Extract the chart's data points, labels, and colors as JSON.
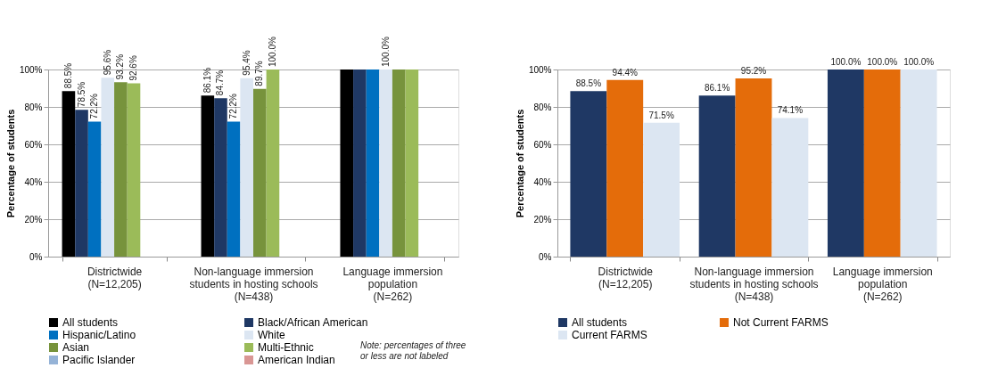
{
  "chart_data": [
    {
      "type": "bar",
      "ylabel": "Percentage of students",
      "categories": [
        "Districtwide\n(N=12,205)",
        "Non-language immersion\nstudents in hosting schools\n(N=438)",
        "Language immersion\npopulation\n(N=262)"
      ],
      "series": [
        {
          "name": "All students",
          "color": "#000000",
          "values": [
            88.5,
            86.1,
            100
          ],
          "value_labels": [
            "88.5%",
            "86.1%",
            null
          ]
        },
        {
          "name": "Black/African American",
          "color": "#1f3864",
          "values": [
            78.5,
            84.7,
            100
          ],
          "value_labels": [
            "78.5%",
            "84.7%",
            null
          ]
        },
        {
          "name": "Hispanic/Latino",
          "color": "#0070c0",
          "values": [
            72.2,
            72.2,
            100
          ],
          "value_labels": [
            "72.2%",
            "72.2%",
            null
          ]
        },
        {
          "name": "White",
          "color": "#dce6f2",
          "values": [
            95.6,
            95.4,
            100
          ],
          "value_labels": [
            "95.6%",
            "95.4%",
            "100.0%"
          ]
        },
        {
          "name": "Asian",
          "color": "#77933c",
          "values": [
            93.2,
            89.7,
            100
          ],
          "value_labels": [
            "93.2%",
            "89.7%",
            null
          ]
        },
        {
          "name": "Multi-Ethnic",
          "color": "#9bbb59",
          "values": [
            92.6,
            100,
            100
          ],
          "value_labels": [
            "92.6%",
            "100.0%",
            null
          ]
        },
        {
          "name": "Pacific Islander",
          "color": "#95b3d7",
          "values": [
            null,
            null,
            null
          ]
        },
        {
          "name": "American Indian",
          "color": "#d99694",
          "values": [
            null,
            null,
            null
          ]
        }
      ],
      "ylim": [
        0,
        100
      ],
      "yticks": [
        {
          "value": 0,
          "label": "0%"
        },
        {
          "value": 20,
          "label": "20%"
        },
        {
          "value": 40,
          "label": "40%"
        },
        {
          "value": 60,
          "label": "60%"
        },
        {
          "value": 80,
          "label": "80%"
        },
        {
          "value": 100,
          "label": "100%"
        }
      ],
      "grid": "y",
      "legend": "bottom",
      "annotations": [
        "Note:  percentages of three  or less are not labeled"
      ]
    },
    {
      "type": "bar",
      "ylabel": "Percentage of students",
      "categories": [
        "Districtwide\n(N=12,205)",
        "Non-language immersion\nstudents in hosting schools\n(N=438)",
        "Language immersion\npopulation\n(N=262)"
      ],
      "series": [
        {
          "name": "All students",
          "color": "#1f3864",
          "values": [
            88.5,
            86.1,
            100
          ],
          "value_labels": [
            "88.5%",
            "86.1%",
            "100.0%"
          ]
        },
        {
          "name": "Not Current FARMS",
          "color": "#e46c0a",
          "values": [
            94.4,
            95.2,
            100
          ],
          "value_labels": [
            "94.4%",
            "95.2%",
            "100.0%"
          ]
        },
        {
          "name": "Current FARMS",
          "color": "#dce6f2",
          "values": [
            71.5,
            74.1,
            100
          ],
          "value_labels": [
            "71.5%",
            "74.1%",
            "100.0%"
          ]
        }
      ],
      "ylim": [
        0,
        100
      ],
      "yticks": [
        {
          "value": 0,
          "label": "0%"
        },
        {
          "value": 20,
          "label": "20%"
        },
        {
          "value": 40,
          "label": "40%"
        },
        {
          "value": 60,
          "label": "60%"
        },
        {
          "value": 80,
          "label": "80%"
        },
        {
          "value": 100,
          "label": "100%"
        }
      ],
      "grid": "y",
      "legend": "bottom"
    }
  ]
}
